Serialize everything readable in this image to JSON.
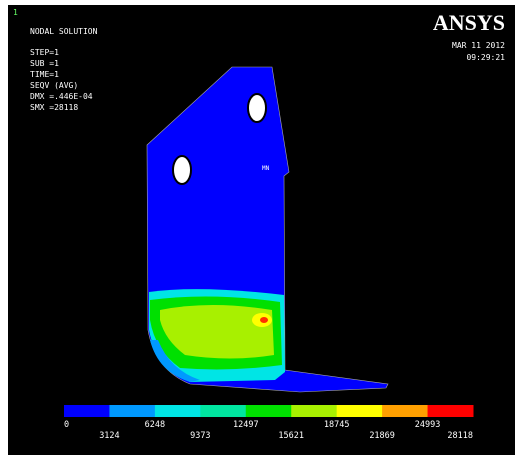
{
  "window": {
    "number": "1",
    "title": "NODAL SOLUTION",
    "info": [
      "STEP=1",
      "SUB =1",
      "TIME=1",
      "SEQV     (AVG)",
      "DMX =.446E-04",
      "SMX =28118"
    ],
    "logo": "ANSYS",
    "date": "MAR 11 2012",
    "time": "09:29:21",
    "min_label": "MN"
  },
  "legend": {
    "colors": [
      "#0000ff",
      "#0099ff",
      "#00e5e5",
      "#00e6a0",
      "#00e000",
      "#a8f000",
      "#ffff00",
      "#ffa000",
      "#ff0000"
    ],
    "upper_labels": [
      "0",
      "6248",
      "12497",
      "18745",
      "24993"
    ],
    "lower_labels": [
      "3124",
      "9373",
      "15621",
      "21869",
      "28118"
    ]
  }
}
